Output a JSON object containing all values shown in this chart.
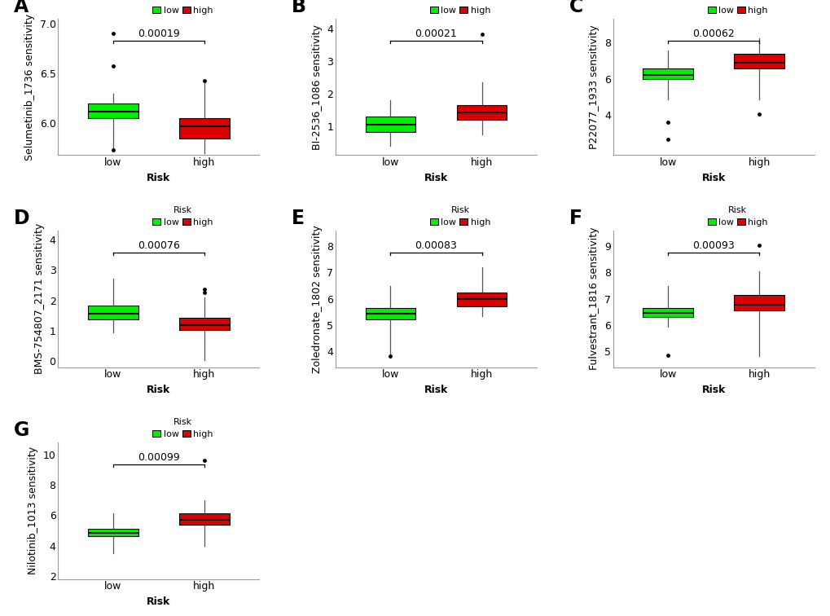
{
  "panels": [
    {
      "label": "A",
      "ylabel": "Selumetinib_1736 sensitivity",
      "pvalue": "0.00019",
      "low": {
        "whisker_low": 5.75,
        "q1": 6.05,
        "median": 6.12,
        "q3": 6.2,
        "whisker_high": 6.3,
        "outliers": [
          5.73,
          6.57,
          6.9
        ]
      },
      "high": {
        "whisker_low": 5.7,
        "q1": 5.85,
        "median": 5.97,
        "q3": 6.05,
        "whisker_high": 6.4,
        "outliers": [
          6.43
        ]
      },
      "ylim": [
        5.68,
        7.05
      ],
      "yticks": [
        6.0,
        6.5,
        7.0
      ]
    },
    {
      "label": "B",
      "ylabel": "BI-2536_1086 sensitivity",
      "pvalue": "0.00021",
      "low": {
        "whisker_low": 0.38,
        "q1": 0.82,
        "median": 1.05,
        "q3": 1.28,
        "whisker_high": 1.8,
        "outliers": []
      },
      "high": {
        "whisker_low": 0.75,
        "q1": 1.18,
        "median": 1.42,
        "q3": 1.65,
        "whisker_high": 2.35,
        "outliers": [
          3.82
        ]
      },
      "ylim": [
        0.1,
        4.3
      ],
      "yticks": [
        1,
        2,
        3,
        4
      ]
    },
    {
      "label": "C",
      "ylabel": "P22077_1933 sensitivity",
      "pvalue": "0.00062",
      "low": {
        "whisker_low": 4.85,
        "q1": 5.98,
        "median": 6.2,
        "q3": 6.55,
        "whisker_high": 7.55,
        "outliers": [
          3.6,
          2.65
        ]
      },
      "high": {
        "whisker_low": 4.85,
        "q1": 6.55,
        "median": 6.85,
        "q3": 7.35,
        "whisker_high": 8.2,
        "outliers": [
          4.05
        ]
      },
      "ylim": [
        1.8,
        9.3
      ],
      "yticks": [
        4,
        6,
        8
      ]
    },
    {
      "label": "D",
      "ylabel": "BMS-754807_2171 sensitivity",
      "pvalue": "0.00076",
      "low": {
        "whisker_low": 0.95,
        "q1": 1.38,
        "median": 1.55,
        "q3": 1.82,
        "whisker_high": 2.7,
        "outliers": []
      },
      "high": {
        "whisker_low": 0.02,
        "q1": 1.02,
        "median": 1.18,
        "q3": 1.42,
        "whisker_high": 2.1,
        "outliers": [
          2.25,
          2.35
        ]
      },
      "ylim": [
        -0.2,
        4.3
      ],
      "yticks": [
        0,
        1,
        2,
        3,
        4
      ]
    },
    {
      "label": "E",
      "ylabel": "Zoledronate_1802 sensitivity",
      "pvalue": "0.00083",
      "low": {
        "whisker_low": 3.85,
        "q1": 5.22,
        "median": 5.42,
        "q3": 5.65,
        "whisker_high": 6.5,
        "outliers": [
          3.82
        ]
      },
      "high": {
        "whisker_low": 5.35,
        "q1": 5.72,
        "median": 5.98,
        "q3": 6.25,
        "whisker_high": 7.2,
        "outliers": []
      },
      "ylim": [
        3.4,
        8.6
      ],
      "yticks": [
        4,
        5,
        6,
        7,
        8
      ]
    },
    {
      "label": "F",
      "ylabel": "Fulvestrant_1816 sensitivity",
      "pvalue": "0.00093",
      "low": {
        "whisker_low": 5.95,
        "q1": 6.32,
        "median": 6.45,
        "q3": 6.65,
        "whisker_high": 7.5,
        "outliers": [
          4.85
        ]
      },
      "high": {
        "whisker_low": 4.82,
        "q1": 6.55,
        "median": 6.78,
        "q3": 7.15,
        "whisker_high": 8.05,
        "outliers": [
          9.05
        ]
      },
      "ylim": [
        4.4,
        9.6
      ],
      "yticks": [
        5,
        6,
        7,
        8,
        9
      ]
    },
    {
      "label": "G",
      "ylabel": "Nilotinib_1013 sensitivity",
      "pvalue": "0.00099",
      "low": {
        "whisker_low": 3.5,
        "q1": 4.6,
        "median": 4.85,
        "q3": 5.1,
        "whisker_high": 6.1,
        "outliers": []
      },
      "high": {
        "whisker_low": 4.0,
        "q1": 5.35,
        "median": 5.7,
        "q3": 6.1,
        "whisker_high": 7.0,
        "outliers": [
          9.6
        ]
      },
      "ylim": [
        1.8,
        10.8
      ],
      "yticks": [
        2,
        4,
        6,
        8,
        10
      ]
    }
  ],
  "low_color": "#00EE00",
  "high_color": "#DD0000",
  "box_width": 0.55,
  "xlabel": "Risk",
  "background_color": "#ffffff",
  "label_fontsize": 17,
  "tick_fontsize": 9,
  "ylabel_fontsize": 9,
  "pvalue_fontsize": 9,
  "legend_fontsize": 8,
  "legend_title_fontsize": 8
}
